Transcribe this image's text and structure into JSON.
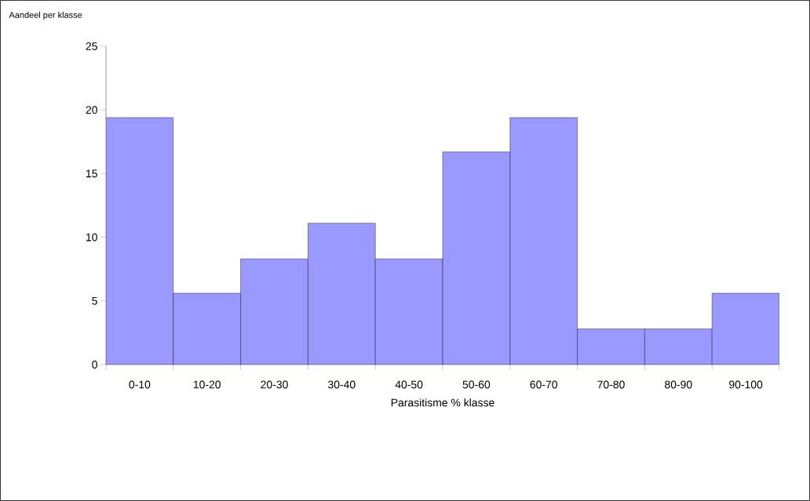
{
  "chart_data": {
    "type": "bar",
    "xlabel": "Parasitisme % klasse",
    "ylabel": "Aandeel per klasse",
    "categories": [
      "0-10",
      "10-20",
      "20-30",
      "30-40",
      "40-50",
      "50-60",
      "60-70",
      "70-80",
      "80-90",
      "90-100"
    ],
    "values": [
      19.4,
      5.6,
      8.3,
      11.1,
      8.3,
      16.7,
      19.4,
      2.8,
      2.8,
      5.6
    ],
    "color": "#9999ff",
    "ylim": [
      0,
      25
    ],
    "yticks": [
      0,
      5,
      10,
      15,
      20,
      25
    ]
  }
}
